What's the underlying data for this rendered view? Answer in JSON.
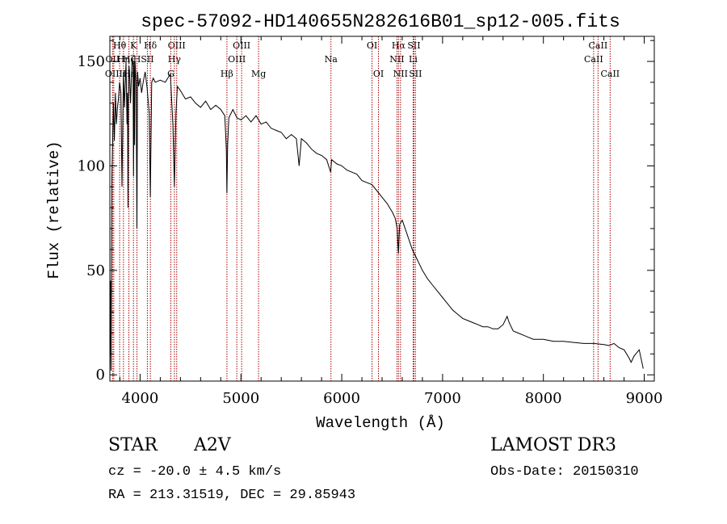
{
  "chart_data": {
    "type": "line",
    "title": "spec-57092-HD140655N282616B01_sp12-005.fits",
    "xlabel": "Wavelength (Å)",
    "ylabel": "Flux (relative)",
    "xlim": [
      3700,
      9100
    ],
    "ylim": [
      -3,
      162
    ],
    "x_ticks": [
      4000,
      5000,
      6000,
      7000,
      8000,
      9000
    ],
    "x_tick_labels": [
      "4000",
      "5000",
      "6000",
      "7000",
      "8000",
      "9000"
    ],
    "y_ticks": [
      0,
      50,
      100,
      150
    ],
    "y_tick_labels": [
      "0",
      "50",
      "100",
      "150"
    ],
    "grid": false,
    "series": [
      {
        "name": "spectrum",
        "x": [
          3700,
          3708,
          3712,
          3720,
          3725,
          3735,
          3745,
          3755,
          3765,
          3775,
          3785,
          3797,
          3810,
          3820,
          3835,
          3845,
          3860,
          3870,
          3875,
          3880,
          3885,
          3889,
          3895,
          3905,
          3920,
          3930,
          3935,
          3940,
          3945,
          3950,
          3960,
          3968,
          3975,
          3985,
          4000,
          4015,
          4030,
          4050,
          4070,
          4090,
          4101,
          4115,
          4130,
          4150,
          4200,
          4250,
          4300,
          4325,
          4340,
          4355,
          4370,
          4400,
          4450,
          4500,
          4550,
          4600,
          4650,
          4700,
          4750,
          4800,
          4840,
          4855,
          4861,
          4868,
          4880,
          4920,
          4960,
          5000,
          5050,
          5100,
          5150,
          5200,
          5250,
          5300,
          5350,
          5400,
          5450,
          5500,
          5550,
          5577,
          5600,
          5650,
          5700,
          5750,
          5800,
          5850,
          5890,
          5900,
          5950,
          6000,
          6050,
          6100,
          6150,
          6200,
          6250,
          6300,
          6350,
          6400,
          6450,
          6500,
          6530,
          6550,
          6558,
          6563,
          6568,
          6575,
          6600,
          6650,
          6700,
          6750,
          6800,
          6850,
          6900,
          6950,
          7000,
          7050,
          7100,
          7150,
          7200,
          7250,
          7300,
          7350,
          7400,
          7450,
          7500,
          7550,
          7600,
          7640,
          7660,
          7700,
          7750,
          7800,
          7850,
          7900,
          7950,
          8000,
          8100,
          8200,
          8300,
          8400,
          8500,
          8600,
          8650,
          8700,
          8750,
          8800,
          8850,
          8870,
          8900,
          8950,
          8990
        ],
        "y": [
          0,
          45,
          2,
          95,
          105,
          130,
          112,
          135,
          120,
          128,
          132,
          140,
          135,
          90,
          145,
          128,
          150,
          120,
          135,
          80,
          142,
          148,
          145,
          130,
          152,
          148,
          95,
          150,
          110,
          150,
          140,
          70,
          145,
          138,
          142,
          135,
          140,
          145,
          137,
          125,
          85,
          140,
          142,
          140,
          141,
          140,
          144,
          120,
          90,
          125,
          138,
          136,
          132,
          133,
          130,
          128,
          131,
          127,
          129,
          127,
          124,
          108,
          87,
          110,
          123,
          127,
          123,
          122,
          124,
          121,
          124,
          120,
          121,
          118,
          117,
          116,
          113,
          115,
          113,
          100,
          113,
          111,
          108,
          106,
          105,
          103,
          97,
          103,
          101,
          100,
          98,
          97,
          96,
          93,
          92,
          91,
          88,
          85,
          82,
          78,
          75,
          70,
          62,
          58,
          65,
          72,
          74,
          67,
          60,
          55,
          50,
          46,
          43,
          40,
          37,
          34,
          31,
          29,
          27,
          26,
          25,
          24,
          23,
          23,
          22,
          22,
          24,
          28,
          25,
          21,
          20,
          19,
          18,
          17,
          17,
          17,
          16,
          16,
          15.5,
          15,
          15,
          14.5,
          14,
          15,
          13,
          12,
          8,
          6,
          9,
          12,
          3
        ]
      }
    ],
    "line_markers": [
      {
        "label": "Hθ",
        "wavelength": 3797,
        "row": 0
      },
      {
        "label": "OII",
        "wavelength": 3727,
        "row": 1
      },
      {
        "label": "OIII",
        "wavelength": 3739,
        "row": 2
      },
      {
        "label": "Hη",
        "wavelength": 3835,
        "row": 1
      },
      {
        "label": "Hε",
        "wavelength": 3889,
        "row": 2
      },
      {
        "label": "K",
        "wavelength": 3934,
        "row": 0
      },
      {
        "label": "H",
        "wavelength": 3969,
        "row": 1
      },
      {
        "label": "Hζ",
        "wavelength": 3889,
        "row": 1
      },
      {
        "label": "SII",
        "wavelength": 4072,
        "row": 1
      },
      {
        "label": "Hδ",
        "wavelength": 4102,
        "row": 0
      },
      {
        "label": "OIII",
        "wavelength": 4363,
        "row": 0
      },
      {
        "label": "Hγ",
        "wavelength": 4340,
        "row": 1
      },
      {
        "label": "G",
        "wavelength": 4305,
        "row": 2
      },
      {
        "label": "Hβ",
        "wavelength": 4861,
        "row": 2
      },
      {
        "label": "OIII",
        "wavelength": 5007,
        "row": 0
      },
      {
        "label": "OIII",
        "wavelength": 4959,
        "row": 1
      },
      {
        "label": "Mg",
        "wavelength": 5175,
        "row": 2
      },
      {
        "label": "Na",
        "wavelength": 5893,
        "row": 1
      },
      {
        "label": "OI",
        "wavelength": 6300,
        "row": 0
      },
      {
        "label": "OI",
        "wavelength": 6364,
        "row": 2
      },
      {
        "label": "Hα",
        "wavelength": 6563,
        "row": 0
      },
      {
        "label": "NII",
        "wavelength": 6548,
        "row": 1
      },
      {
        "label": "NII",
        "wavelength": 6583,
        "row": 2
      },
      {
        "label": "SII",
        "wavelength": 6716,
        "row": 0
      },
      {
        "label": "Li",
        "wavelength": 6708,
        "row": 1
      },
      {
        "label": "SII",
        "wavelength": 6731,
        "row": 2
      },
      {
        "label": "CaII",
        "wavelength": 8542,
        "row": 0
      },
      {
        "label": "CaII",
        "wavelength": 8498,
        "row": 1
      },
      {
        "label": "CaII",
        "wavelength": 8662,
        "row": 2
      }
    ]
  },
  "footer": {
    "object_class": "STAR",
    "spectral_type": "A2V",
    "survey": "LAMOST DR3",
    "cz": "cz = -20.0 ± 4.5 km/s",
    "obs_date": "Obs-Date: 20150310",
    "coords": "RA = 213.31519, DEC =  29.85943"
  },
  "colors": {
    "spectrum": "#000000",
    "marker_lines": "#aa0000",
    "axes": "#000000"
  }
}
